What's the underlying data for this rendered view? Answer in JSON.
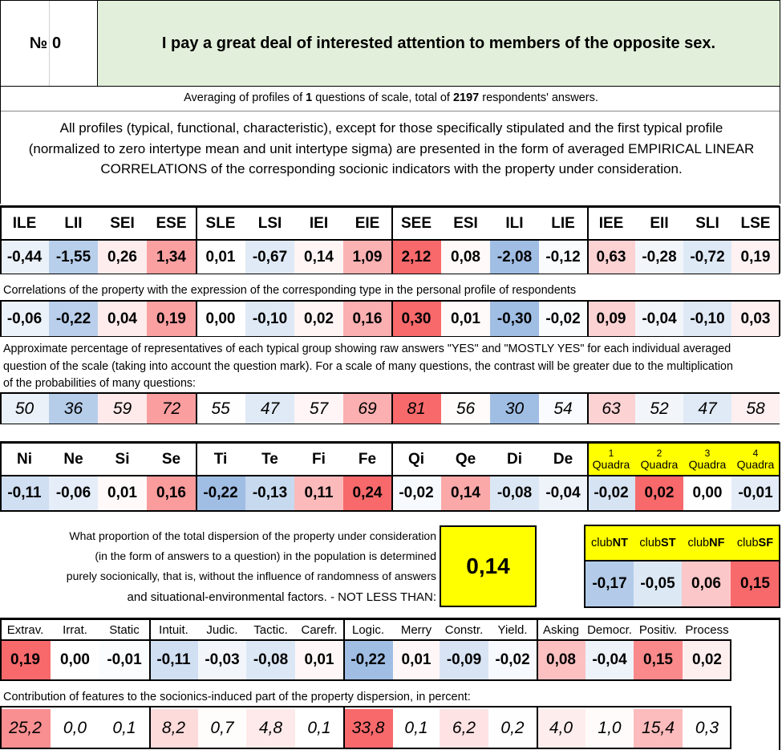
{
  "header": {
    "number_label": "№",
    "number_value": "0",
    "question": "I pay a great deal of interested attention to members of the opposite sex."
  },
  "averaging": {
    "prefix": "Averaging of profiles of",
    "questions": "1",
    "middle": "questions of scale, total of",
    "answers": "2197",
    "suffix": "respondents' answers."
  },
  "description": "All profiles (typical, functional, characteristic), except for those specifically stipulated and the first typical profile (normalized to zero intertype mean and unit intertype sigma) are presented in the form of averaged EMPIRICAL LINEAR CORRELATIONS of the corresponding socionic indicators with the property under consideration.",
  "types": {
    "labels": [
      "ILE",
      "LII",
      "SEI",
      "ESE",
      "SLE",
      "LSI",
      "IEI",
      "EIE",
      "SEE",
      "ESI",
      "ILI",
      "LIE",
      "IEE",
      "EII",
      "SLI",
      "LSE"
    ],
    "normalized": [
      "-0,44",
      "-1,55",
      "0,26",
      "1,34",
      "0,01",
      "-0,67",
      "0,14",
      "1,09",
      "2,12",
      "0,08",
      "-2,08",
      "-0,12",
      "0,63",
      "-0,28",
      "-0,72",
      "0,19"
    ],
    "correlation_caption": "Correlations of the property with the expression of the corresponding type in the personal profile of respondents",
    "correlations": [
      "-0,06",
      "-0,22",
      "0,04",
      "0,19",
      "0,00",
      "-0,10",
      "0,02",
      "0,16",
      "0,30",
      "0,01",
      "-0,30",
      "-0,02",
      "0,09",
      "-0,04",
      "-0,10",
      "0,03"
    ],
    "percent_caption": "Approximate percentage of representatives of each typical group showing raw answers \"YES\" and \"MOSTLY YES\" for each individual averaged question of the scale (taking into account the question mark). For a scale of many questions, the contrast will be greater due to the multiplication of the probabilities of many questions:",
    "percents": [
      "50",
      "36",
      "59",
      "72",
      "55",
      "47",
      "57",
      "69",
      "81",
      "56",
      "30",
      "54",
      "63",
      "52",
      "47",
      "58"
    ]
  },
  "functions": {
    "labels": [
      "Ni",
      "Ne",
      "Si",
      "Se",
      "Ti",
      "Te",
      "Fi",
      "Fe",
      "Qi",
      "Qe",
      "Di",
      "De"
    ],
    "values": [
      "-0,11",
      "-0,06",
      "0,01",
      "0,16",
      "-0,22",
      "-0,13",
      "0,11",
      "0,24",
      "-0,02",
      "0,14",
      "-0,08",
      "-0,04"
    ]
  },
  "quadras": {
    "numbers": [
      "1",
      "2",
      "3",
      "4"
    ],
    "word": "Quadra",
    "values": [
      "-0,02",
      "0,02",
      "0,00",
      "-0,01"
    ]
  },
  "dispersion": {
    "text_lines": [
      "What proportion of the total dispersion of the property under consideration",
      "(in the form of answers to a question) in the population is determined",
      "purely socionically, that is, without the influence of randomness of answers",
      "and situational-environmental factors. - NOT LESS THAN:"
    ],
    "value": "0,14"
  },
  "clubs": {
    "prefix": "club",
    "codes": [
      "NT",
      "ST",
      "NF",
      "SF"
    ],
    "values": [
      "-0,17",
      "-0,05",
      "0,06",
      "0,15"
    ]
  },
  "traits": {
    "labels": [
      "Extrav.",
      "Irrat.",
      "Static",
      "Intuit.",
      "Judic.",
      "Tactic.",
      "Carefr.",
      "Logic.",
      "Merry",
      "Constr.",
      "Yield.",
      "Asking",
      "Democr.",
      "Positiv.",
      "Process"
    ],
    "values": [
      "0,19",
      "0,00",
      "-0,01",
      "-0,11",
      "-0,03",
      "-0,08",
      "0,01",
      "-0,22",
      "0,01",
      "-0,09",
      "-0,02",
      "0,08",
      "-0,04",
      "0,15",
      "0,02"
    ],
    "contribution_caption": "Contribution of features to the sociоnics-induced part of the property dispersion, in percent:",
    "contributions": [
      "25,2",
      "0,0",
      "0,1",
      "8,2",
      "0,7",
      "4,8",
      "0,1",
      "33,8",
      "0,1",
      "6,2",
      "0,2",
      "4,0",
      "1,0",
      "15,4",
      "0,3"
    ]
  },
  "colors": {
    "header_green": "#e2efda",
    "highlight_yellow": "#ffff00",
    "strong_red": "#f8696b",
    "strong_blue": "#a9c4e5"
  }
}
